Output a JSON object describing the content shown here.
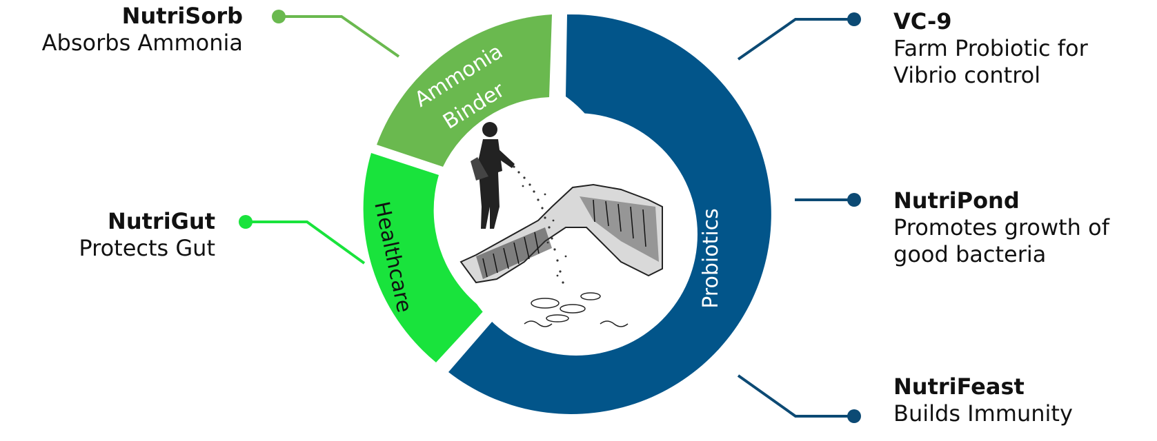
{
  "theme": {
    "probiotics_color": "#02558a",
    "ammonia_color": "#6ab94f",
    "healthcare_color": "#19e33c",
    "connector_blue": "#0c4a74"
  },
  "segments": {
    "probiotics": "Probiotics",
    "ammonia_binder_line1": "Ammonia",
    "ammonia_binder_line2": "Binder",
    "healthcare": "Healthcare"
  },
  "products": {
    "nutrisorb": {
      "name": "NutriSorb",
      "desc": "Absorbs Ammonia"
    },
    "nutrigut": {
      "name": "NutriGut",
      "desc": "Protects Gut"
    },
    "vc9": {
      "name": "VC-9",
      "desc_line1": "Farm Probiotic for",
      "desc_line2": "Vibrio control"
    },
    "nutripond": {
      "name": "NutriPond",
      "desc_line1": "Promotes growth of",
      "desc_line2": "good bacteria"
    },
    "nutrifeast": {
      "name": "NutriFeast",
      "desc": "Builds Immunity"
    }
  },
  "center_image": "farmer-spreading-probiotic-into-pond-illustration"
}
